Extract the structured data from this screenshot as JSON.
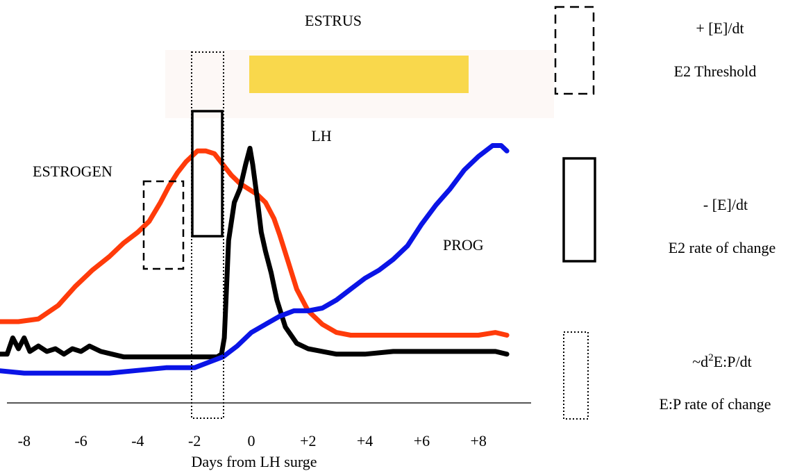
{
  "chart_data": {
    "type": "line",
    "xlabel": "Days from LH surge",
    "x_ticks": [
      "-8",
      "-6",
      "-4",
      "-2",
      "0",
      "+2",
      "+4",
      "+6",
      "+8"
    ],
    "x_tick_values": [
      -8,
      -6,
      -4,
      -2,
      0,
      2,
      4,
      6,
      8
    ],
    "xlim": [
      -9,
      9
    ],
    "ylim": [
      0,
      100
    ],
    "grid": false,
    "series": [
      {
        "name": "ESTROGEN",
        "color": "#ff3b0a",
        "x": [
          -9,
          -8.2,
          -7.5,
          -6.8,
          -6.2,
          -5.6,
          -5,
          -4.5,
          -4,
          -3.6,
          -3.2,
          -2.9,
          -2.6,
          -2.3,
          -2.1,
          -1.9,
          -1.6,
          -1.3,
          -1.0,
          -0.7,
          -0.4,
          -0.1,
          0.2,
          0.5,
          0.8,
          1.0,
          1.3,
          1.6,
          2.0,
          2.5,
          3.0,
          3.5,
          4.0,
          5.0,
          6.0,
          7.0,
          8.0,
          8.6,
          9
        ],
        "y": [
          30,
          30,
          31,
          36,
          43,
          49,
          54,
          59,
          63,
          67,
          74,
          80,
          85,
          89,
          91,
          93,
          93,
          92,
          88,
          84,
          81,
          79,
          77,
          74,
          68,
          62,
          52,
          42,
          34,
          29,
          26,
          25,
          25,
          25,
          25,
          25,
          25,
          26,
          25
        ]
      },
      {
        "name": "LH",
        "color": "#000000",
        "x": [
          -9,
          -8.6,
          -8.4,
          -8.2,
          -8.0,
          -7.8,
          -7.5,
          -7.2,
          -6.9,
          -6.6,
          -6.3,
          -6.0,
          -5.7,
          -5.3,
          -4.9,
          -4.5,
          -4,
          -3,
          -2.5,
          -2,
          -1.5,
          -1.2,
          -1.05,
          -0.95,
          -0.8,
          -0.6,
          -0.4,
          -0.2,
          -0.05,
          0.05,
          0.2,
          0.35,
          0.5,
          0.7,
          0.9,
          1.2,
          1.6,
          2,
          2.5,
          3,
          3.5,
          4,
          5,
          6,
          7,
          8,
          8.6,
          9
        ],
        "y": [
          18,
          18,
          24,
          20,
          24,
          19,
          21,
          19,
          20,
          18,
          20,
          19,
          21,
          19,
          18,
          17,
          17,
          17,
          17,
          17,
          17,
          17,
          18,
          24,
          60,
          74,
          79,
          88,
          94,
          88,
          76,
          63,
          56,
          48,
          38,
          28,
          22,
          20,
          19,
          18,
          18,
          18,
          19,
          19,
          19,
          19,
          19,
          18
        ]
      },
      {
        "name": "PROG",
        "color": "#0a14e6",
        "x": [
          -9,
          -8,
          -7,
          -6,
          -5,
          -4,
          -3,
          -2.5,
          -2,
          -1.5,
          -1,
          -0.5,
          0,
          0.5,
          1,
          1.5,
          2,
          2.5,
          3,
          3.5,
          4,
          4.5,
          5,
          5.5,
          6,
          6.5,
          7,
          7.5,
          8,
          8.5,
          8.8,
          9
        ],
        "y": [
          12,
          11,
          11,
          11,
          11,
          12,
          13,
          13,
          13,
          15,
          17,
          21,
          26,
          29,
          32,
          34,
          34,
          35,
          38,
          42,
          46,
          49,
          53,
          58,
          66,
          73,
          79,
          86,
          91,
          95,
          95,
          93
        ]
      }
    ],
    "annotations": {
      "estrus": "ESTRUS",
      "lh": "LH",
      "estrogen": "ESTROGEN",
      "prog": "PROG"
    },
    "legend": [
      {
        "style": "dashed",
        "formula_text": "+ [E]/dt",
        "caption": "E2 Threshold"
      },
      {
        "style": "solid",
        "formula_text": "- [E]/dt",
        "caption": "E2 rate of change"
      },
      {
        "style": "dotted",
        "formula_text": "~d",
        "formula_superscript": "2",
        "formula_suffix": "E:P/dt",
        "caption": "E:P rate of change"
      }
    ],
    "colors": {
      "estrus_band": "#fdf8f6",
      "estrus_bar": "#f9d84c",
      "estrogen": "#ff3b0a",
      "lh": "#000000",
      "prog": "#0a14e6"
    }
  }
}
